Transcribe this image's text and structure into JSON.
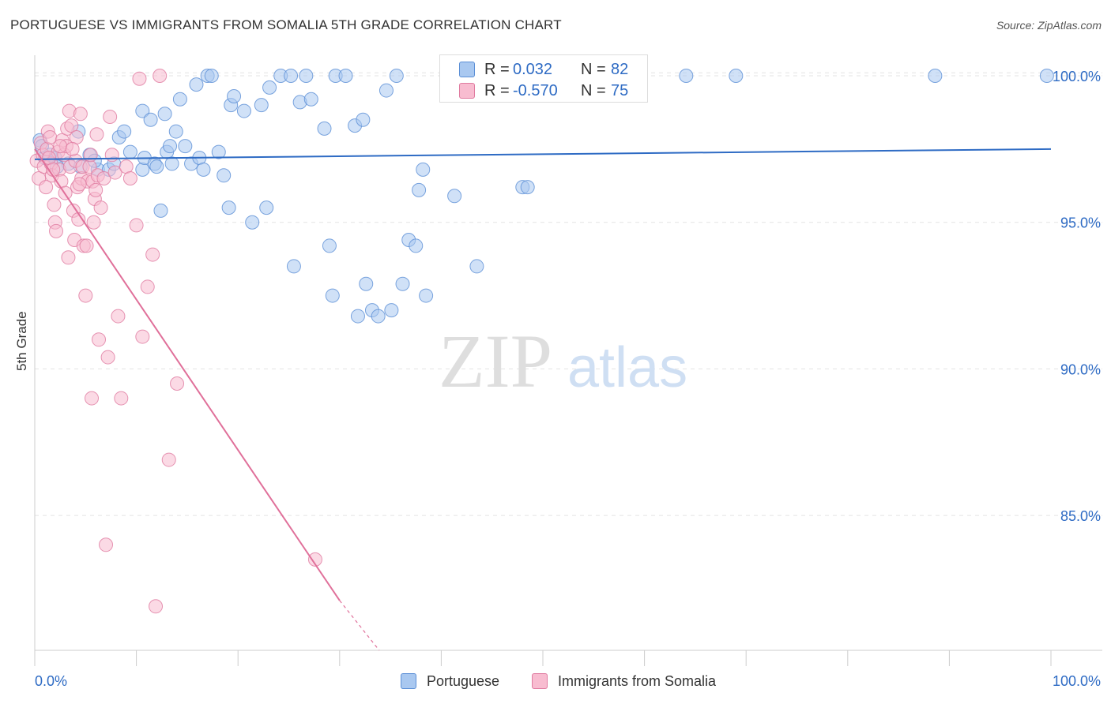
{
  "header": {
    "title": "PORTUGUESE VS IMMIGRANTS FROM SOMALIA 5TH GRADE CORRELATION CHART",
    "source": "Source: ZipAtlas.com"
  },
  "watermark": {
    "zip": "ZIP",
    "atlas": "atlas"
  },
  "legend": {
    "rows": [
      {
        "label": "R =",
        "r": "0.032",
        "n_label": "N =",
        "n": "82",
        "color": "#a9c8f0",
        "stroke": "#5b8fd6"
      },
      {
        "label": "R =",
        "r": "-0.570",
        "n_label": "N =",
        "n": "75",
        "color": "#f8bcd0",
        "stroke": "#e07ba0"
      }
    ],
    "bottom": [
      {
        "name": "Portuguese",
        "color": "#a9c8f0",
        "stroke": "#5b8fd6"
      },
      {
        "name": "Immigrants from Somalia",
        "color": "#f8bcd0",
        "stroke": "#e07ba0"
      }
    ]
  },
  "chart_data": {
    "type": "scatter",
    "title": "PORTUGUESE VS IMMIGRANTS FROM SOMALIA 5TH GRADE CORRELATION CHART",
    "xlabel": "",
    "ylabel": "5th Grade",
    "xlim": [
      0,
      100
    ],
    "ylim": [
      80.4,
      100.7
    ],
    "x_tick_labels": [
      "0.0%",
      "100.0%"
    ],
    "y_ticks": [
      85,
      90,
      95,
      100
    ],
    "y_tick_labels": [
      "85.0%",
      "90.0%",
      "95.0%",
      "100.0%"
    ],
    "grid": true,
    "colors": {
      "blue": "#2e6bc4",
      "pink": "#e0709a",
      "axis_text": "#2e6bc4"
    },
    "series": [
      {
        "name": "Portuguese",
        "color": "#5b8fd6",
        "fill": "#a9c8f0",
        "trend": {
          "x": [
            0,
            100
          ],
          "y": [
            97.15,
            97.5
          ],
          "color": "#2e6bc4"
        },
        "points": [
          [
            0.5,
            97.8
          ],
          [
            0.7,
            97.6
          ],
          [
            1.0,
            97.2
          ],
          [
            1.5,
            97.3
          ],
          [
            2.0,
            97.2
          ],
          [
            3.3,
            97.0
          ],
          [
            4.5,
            96.9
          ],
          [
            5.4,
            97.3
          ],
          [
            6.2,
            96.8
          ],
          [
            4.3,
            98.1
          ],
          [
            7.3,
            96.8
          ],
          [
            7.8,
            97.0
          ],
          [
            8.3,
            97.9
          ],
          [
            8.8,
            98.1
          ],
          [
            9.4,
            97.4
          ],
          [
            10.6,
            96.8
          ],
          [
            10.8,
            97.2
          ],
          [
            11.8,
            97.0
          ],
          [
            12.0,
            96.9
          ],
          [
            10.6,
            98.8
          ],
          [
            11.4,
            98.5
          ],
          [
            12.4,
            95.4
          ],
          [
            12.8,
            98.7
          ],
          [
            13.0,
            97.4
          ],
          [
            13.5,
            97.0
          ],
          [
            13.9,
            98.1
          ],
          [
            14.3,
            99.2
          ],
          [
            14.8,
            97.6
          ],
          [
            15.4,
            97.0
          ],
          [
            15.9,
            99.7
          ],
          [
            16.2,
            97.2
          ],
          [
            16.6,
            96.8
          ],
          [
            17.0,
            100.0
          ],
          [
            17.4,
            100.0
          ],
          [
            18.1,
            97.4
          ],
          [
            18.6,
            96.6
          ],
          [
            19.1,
            95.5
          ],
          [
            19.3,
            99.0
          ],
          [
            19.6,
            99.3
          ],
          [
            20.6,
            98.8
          ],
          [
            21.4,
            95.0
          ],
          [
            22.3,
            99.0
          ],
          [
            22.8,
            95.5
          ],
          [
            23.1,
            99.6
          ],
          [
            24.2,
            100.0
          ],
          [
            25.2,
            100.0
          ],
          [
            25.5,
            93.5
          ],
          [
            26.1,
            99.1
          ],
          [
            26.7,
            100.0
          ],
          [
            27.2,
            99.2
          ],
          [
            28.5,
            98.2
          ],
          [
            29.0,
            94.2
          ],
          [
            29.3,
            92.5
          ],
          [
            29.6,
            100.0
          ],
          [
            30.6,
            100.0
          ],
          [
            31.5,
            98.3
          ],
          [
            31.8,
            91.8
          ],
          [
            32.3,
            98.5
          ],
          [
            32.6,
            92.9
          ],
          [
            33.2,
            92.0
          ],
          [
            33.8,
            91.8
          ],
          [
            34.6,
            99.5
          ],
          [
            35.1,
            92.0
          ],
          [
            35.6,
            100.0
          ],
          [
            36.2,
            92.9
          ],
          [
            36.8,
            94.4
          ],
          [
            37.5,
            94.2
          ],
          [
            37.8,
            96.1
          ],
          [
            38.2,
            96.8
          ],
          [
            38.5,
            92.5
          ],
          [
            41.3,
            95.9
          ],
          [
            43.5,
            93.5
          ],
          [
            48.0,
            96.2
          ],
          [
            48.5,
            96.2
          ],
          [
            51.1,
            100.0
          ],
          [
            64.1,
            100.0
          ],
          [
            69.0,
            100.0
          ],
          [
            88.6,
            100.0
          ],
          [
            99.6,
            100.0
          ],
          [
            2.2,
            96.9
          ],
          [
            5.9,
            97.1
          ],
          [
            13.3,
            97.6
          ]
        ]
      },
      {
        "name": "Immigrants from Somalia",
        "color": "#e07ba0",
        "fill": "#f8bcd0",
        "trend": {
          "x": [
            0,
            30.0,
            33.9
          ],
          "y": [
            97.5,
            82.1,
            80.4
          ],
          "color": "#e0709a"
        },
        "points": [
          [
            0.2,
            97.1
          ],
          [
            0.4,
            96.5
          ],
          [
            0.6,
            97.7
          ],
          [
            0.8,
            97.3
          ],
          [
            0.9,
            96.9
          ],
          [
            1.1,
            96.2
          ],
          [
            1.2,
            97.5
          ],
          [
            1.3,
            98.1
          ],
          [
            1.5,
            97.9
          ],
          [
            1.6,
            97.0
          ],
          [
            1.7,
            96.6
          ],
          [
            1.9,
            95.6
          ],
          [
            2.0,
            95.0
          ],
          [
            2.1,
            94.7
          ],
          [
            2.3,
            97.4
          ],
          [
            2.4,
            96.8
          ],
          [
            2.6,
            96.4
          ],
          [
            2.7,
            97.8
          ],
          [
            2.9,
            97.3
          ],
          [
            3.0,
            96.0
          ],
          [
            3.1,
            97.6
          ],
          [
            3.2,
            98.2
          ],
          [
            3.3,
            93.8
          ],
          [
            3.4,
            98.8
          ],
          [
            3.5,
            96.9
          ],
          [
            3.6,
            98.3
          ],
          [
            3.8,
            95.4
          ],
          [
            3.9,
            94.4
          ],
          [
            4.0,
            97.1
          ],
          [
            4.1,
            97.9
          ],
          [
            4.2,
            96.2
          ],
          [
            4.3,
            95.1
          ],
          [
            4.5,
            98.7
          ],
          [
            4.6,
            96.5
          ],
          [
            4.7,
            96.9
          ],
          [
            4.8,
            94.2
          ],
          [
            5.0,
            92.5
          ],
          [
            5.1,
            94.2
          ],
          [
            5.2,
            96.4
          ],
          [
            5.4,
            96.9
          ],
          [
            5.5,
            97.3
          ],
          [
            5.6,
            89.0
          ],
          [
            5.7,
            96.4
          ],
          [
            5.8,
            95.0
          ],
          [
            5.9,
            95.8
          ],
          [
            6.1,
            98.0
          ],
          [
            6.2,
            96.6
          ],
          [
            6.3,
            91.0
          ],
          [
            6.5,
            95.5
          ],
          [
            6.8,
            96.5
          ],
          [
            7.0,
            84.0
          ],
          [
            7.2,
            90.4
          ],
          [
            7.4,
            98.6
          ],
          [
            7.6,
            97.3
          ],
          [
            7.9,
            96.7
          ],
          [
            8.2,
            91.8
          ],
          [
            8.5,
            89.0
          ],
          [
            9.0,
            96.9
          ],
          [
            9.4,
            96.5
          ],
          [
            10.0,
            94.9
          ],
          [
            10.3,
            99.9
          ],
          [
            10.6,
            91.1
          ],
          [
            11.1,
            92.8
          ],
          [
            11.6,
            93.9
          ],
          [
            11.9,
            81.9
          ],
          [
            12.3,
            100.0
          ],
          [
            13.2,
            86.9
          ],
          [
            14.0,
            89.5
          ],
          [
            27.6,
            83.5
          ],
          [
            1.4,
            97.2
          ],
          [
            2.5,
            97.6
          ],
          [
            3.7,
            97.5
          ],
          [
            4.4,
            96.3
          ],
          [
            6.0,
            96.1
          ],
          [
            1.8,
            96.8
          ]
        ]
      }
    ]
  }
}
